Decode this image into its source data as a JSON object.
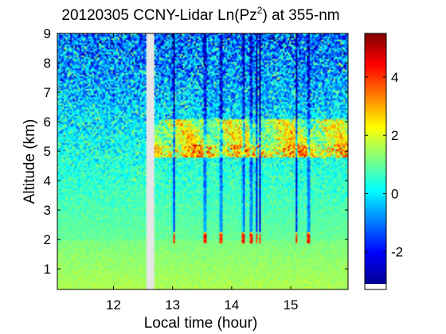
{
  "chart_data": {
    "type": "heatmap",
    "title_main": "20120305 CCNY-Lidar Ln(Pz",
    "title_sup": "2",
    "title_tail": ") at 355-nm",
    "xlabel": "Local time (hour)",
    "ylabel": "Altitude (km)",
    "xlim": [
      11.05,
      15.97
    ],
    "ylim": [
      0.3,
      9.0
    ],
    "xticks": [
      12,
      13,
      14,
      15
    ],
    "yticks": [
      1,
      2,
      3,
      4,
      5,
      6,
      7,
      8,
      9
    ],
    "colorbar": {
      "range": [
        -3.1,
        5.5
      ],
      "ticks": [
        -2,
        0,
        2,
        4
      ],
      "colormap": "jet"
    },
    "data_gap_hours": [
      12.55,
      12.7
    ],
    "features": {
      "aerosol_layer_top_km": 6.1,
      "aerosol_layer_bottom_km": 4.8,
      "low_cloud_base_km": 2.1,
      "low_cloud_start_hour": 12.7,
      "high_signal_columns_hours": [
        13.02,
        13.55,
        13.82,
        14.2,
        14.33,
        14.42,
        14.48,
        15.1,
        15.3
      ]
    }
  }
}
